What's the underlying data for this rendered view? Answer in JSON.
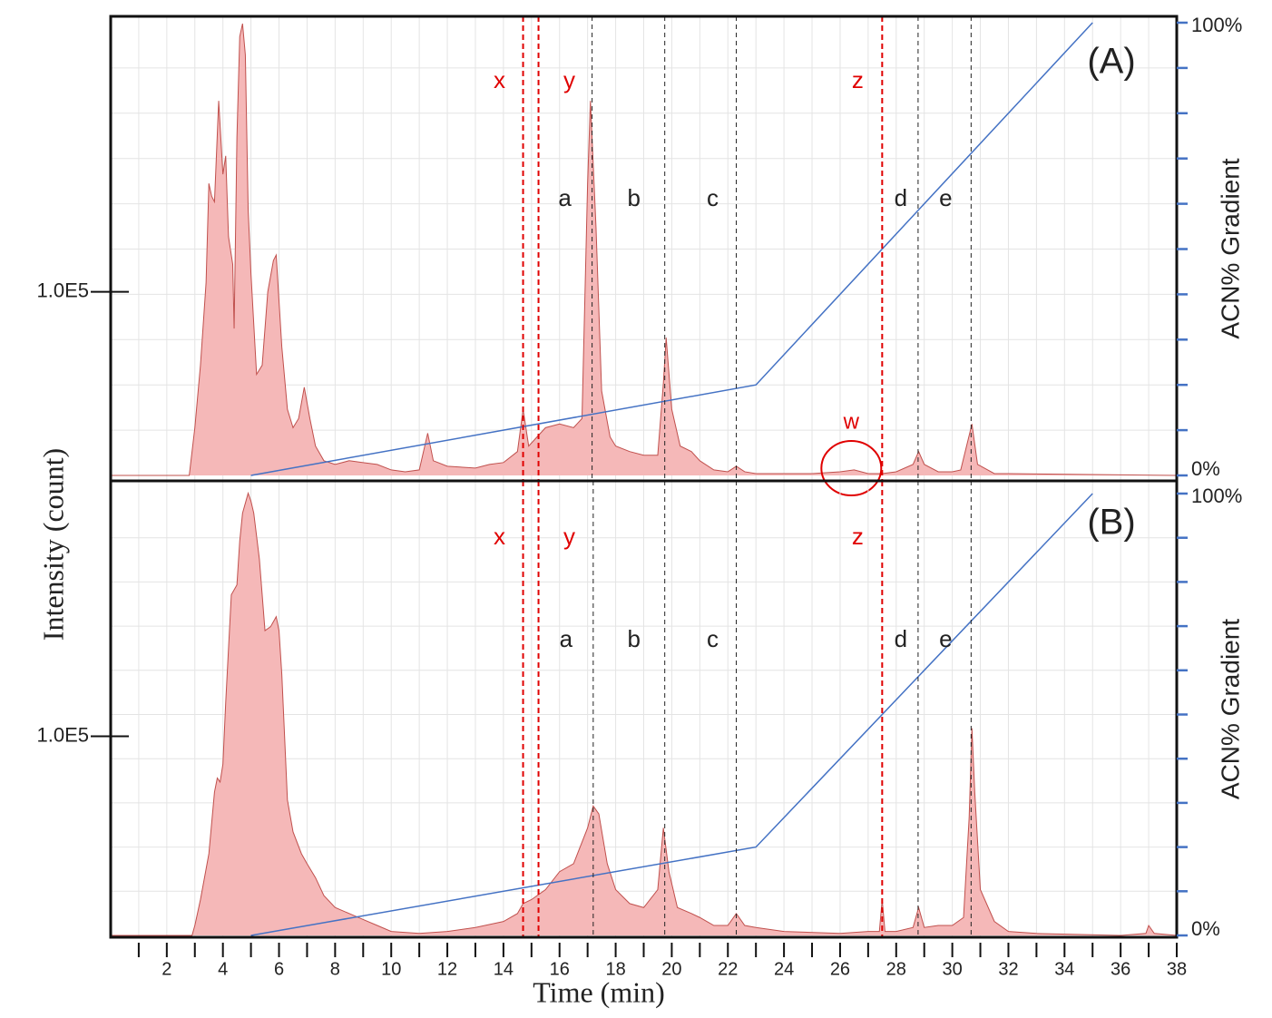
{
  "chart_data": [
    {
      "type": "area",
      "panel_label": "(A)",
      "ylabel": "Intensity (count)",
      "y2label": "ACN% Gradient",
      "xlim": [
        0,
        38
      ],
      "ylim": [
        0,
        250000
      ],
      "yticks": [
        {
          "value": 100000,
          "label": "1.0E5"
        }
      ],
      "y2lim": [
        0,
        100
      ],
      "y2ticks": [
        {
          "value": 0,
          "label": "0%"
        },
        {
          "value": 100,
          "label": "100%"
        }
      ],
      "y2minor": [
        10,
        20,
        30,
        40,
        50,
        60,
        70,
        80,
        90
      ],
      "grid": true,
      "series": [
        {
          "color": "#c0504d",
          "fill": "#f5b8b8",
          "x": [
            0,
            2.8,
            3,
            3.2,
            3.4,
            3.5,
            3.6,
            3.7,
            3.85,
            4,
            4.1,
            4.2,
            4.35,
            4.4,
            4.5,
            4.6,
            4.7,
            4.8,
            4.9,
            5,
            5.2,
            5.4,
            5.6,
            5.8,
            5.9,
            6.1,
            6.3,
            6.5,
            6.7,
            6.9,
            7.1,
            7.3,
            7.6,
            8,
            8.5,
            9,
            9.5,
            10,
            10.5,
            11,
            11.3,
            11.5,
            12,
            13,
            13.5,
            14,
            14.5,
            14.7,
            14.9,
            15.2,
            15.5,
            16,
            16.5,
            16.8,
            17,
            17.1,
            17.3,
            17.5,
            17.8,
            18,
            18.5,
            19,
            19.5,
            19.7,
            19.8,
            20,
            20.3,
            20.7,
            21,
            21.5,
            22,
            22.3,
            22.6,
            23,
            24,
            25,
            26,
            26.5,
            27,
            27.5,
            28,
            28.6,
            28.8,
            29,
            29.5,
            30,
            30.3,
            30.7,
            30.9,
            31.5,
            32,
            38
          ],
          "values": [
            0,
            0,
            26000,
            60000,
            105000,
            159000,
            152000,
            149000,
            204000,
            164000,
            174000,
            130000,
            115000,
            80000,
            184000,
            239000,
            246000,
            229000,
            145000,
            110000,
            55000,
            60000,
            100000,
            117000,
            120000,
            70000,
            36000,
            26000,
            31000,
            48000,
            31000,
            16000,
            8000,
            6000,
            8000,
            7000,
            6000,
            3000,
            2000,
            3000,
            23000,
            8000,
            5000,
            4000,
            6000,
            7000,
            13000,
            36000,
            16000,
            21000,
            26000,
            28000,
            26000,
            31000,
            159000,
            204000,
            135000,
            46000,
            21000,
            16000,
            13000,
            11000,
            11000,
            50000,
            75000,
            36000,
            16000,
            13000,
            8000,
            3000,
            2000,
            5000,
            2000,
            1000,
            1000,
            1000,
            2000,
            3000,
            1000,
            1000,
            2000,
            6000,
            13000,
            6000,
            2000,
            2000,
            3000,
            28000,
            6000,
            1000,
            1000,
            0
          ]
        },
        {
          "color": "#4472c4",
          "axis": "y2",
          "x": [
            5,
            23,
            35
          ],
          "values": [
            0,
            20,
            100
          ]
        }
      ],
      "markers": [
        {
          "label": "x",
          "x": 14.7,
          "color": "#e00000"
        },
        {
          "label": "y",
          "x": 15.25,
          "color": "#e00000"
        },
        {
          "label": "a",
          "x": 17.16,
          "color": "#222222"
        },
        {
          "label": "b",
          "x": 19.75,
          "color": "#222222"
        },
        {
          "label": "c",
          "x": 22.3,
          "color": "#222222"
        },
        {
          "label": "z",
          "x": 27.5,
          "color": "#e00000"
        },
        {
          "label": "d",
          "x": 28.78,
          "color": "#222222"
        },
        {
          "label": "e",
          "x": 30.67,
          "color": "#222222"
        }
      ],
      "circle": {
        "label": "w",
        "x": 26.4,
        "color": "#e00000"
      }
    },
    {
      "type": "area",
      "panel_label": "(B)",
      "y2label": "ACN% Gradient",
      "xlabel": "Time (min)",
      "xlim": [
        0,
        38
      ],
      "xticks": [
        2,
        4,
        6,
        8,
        10,
        12,
        14,
        16,
        18,
        20,
        22,
        24,
        26,
        28,
        30,
        32,
        34,
        36,
        38
      ],
      "xminor": [
        1,
        3,
        5,
        7,
        9,
        11,
        13,
        15,
        17,
        19,
        21,
        23,
        25,
        27,
        29,
        31,
        33,
        35,
        37
      ],
      "ylim": [
        0,
        225000
      ],
      "yticks": [
        {
          "value": 100000,
          "label": "1.0E5"
        }
      ],
      "y2lim": [
        0,
        100
      ],
      "y2ticks": [
        {
          "value": 0,
          "label": "0%"
        },
        {
          "value": 100,
          "label": "100%"
        }
      ],
      "y2minor": [
        10,
        20,
        30,
        40,
        50,
        60,
        70,
        80,
        90
      ],
      "grid": true,
      "series": [
        {
          "color": "#c0504d",
          "fill": "#f5b8b8",
          "x": [
            0,
            2.9,
            3,
            3.2,
            3.5,
            3.7,
            3.8,
            3.9,
            4,
            4.1,
            4.3,
            4.5,
            4.6,
            4.7,
            4.9,
            5,
            5.1,
            5.3,
            5.5,
            5.7,
            5.9,
            6,
            6.1,
            6.3,
            6.5,
            6.8,
            7,
            7.3,
            7.6,
            8,
            8.5,
            9,
            9.5,
            10,
            11,
            12,
            13,
            14,
            14.5,
            14.7,
            15,
            15.5,
            16,
            16.5,
            17,
            17.2,
            17.4,
            17.7,
            18,
            18.5,
            19,
            19.5,
            19.7,
            19.9,
            20.2,
            20.7,
            21,
            21.5,
            22,
            22.3,
            22.6,
            23,
            24,
            26,
            27,
            27.4,
            27.5,
            27.6,
            28,
            28.6,
            28.8,
            29,
            29.5,
            30,
            30.4,
            30.6,
            30.7,
            30.8,
            31,
            31.5,
            32,
            33,
            36,
            36.9,
            37,
            37.2,
            38
          ],
          "values": [
            0,
            0,
            5000,
            18000,
            41000,
            72000,
            79000,
            77000,
            86000,
            117000,
            171000,
            176000,
            198000,
            212000,
            222000,
            218000,
            212000,
            189000,
            153000,
            155000,
            160000,
            153000,
            131000,
            68000,
            52000,
            41000,
            36000,
            29000,
            20000,
            14000,
            11000,
            8000,
            5000,
            2000,
            1000,
            2000,
            4000,
            7000,
            11000,
            16000,
            18000,
            23000,
            32000,
            36000,
            54000,
            65000,
            61000,
            36000,
            23000,
            16000,
            14000,
            23000,
            54000,
            32000,
            14000,
            11000,
            9000,
            5000,
            5000,
            11000,
            5000,
            4000,
            2000,
            1000,
            2000,
            2000,
            18000,
            2000,
            2000,
            4000,
            14000,
            4000,
            5000,
            5000,
            9000,
            59000,
            104000,
            72000,
            23000,
            7000,
            2000,
            1000,
            0,
            1000,
            5000,
            1000,
            0
          ]
        },
        {
          "color": "#4472c4",
          "axis": "y2",
          "x": [
            5,
            23,
            35
          ],
          "values": [
            0,
            20,
            100
          ]
        }
      ],
      "markers": [
        {
          "label": "x",
          "x": 14.7,
          "color": "#e00000"
        },
        {
          "label": "y",
          "x": 15.25,
          "color": "#e00000"
        },
        {
          "label": "a",
          "x": 17.2,
          "color": "#222222"
        },
        {
          "label": "b",
          "x": 19.75,
          "color": "#222222"
        },
        {
          "label": "c",
          "x": 22.3,
          "color": "#222222"
        },
        {
          "label": "z",
          "x": 27.5,
          "color": "#e00000"
        },
        {
          "label": "d",
          "x": 28.78,
          "color": "#222222"
        },
        {
          "label": "e",
          "x": 30.67,
          "color": "#222222"
        }
      ]
    }
  ]
}
